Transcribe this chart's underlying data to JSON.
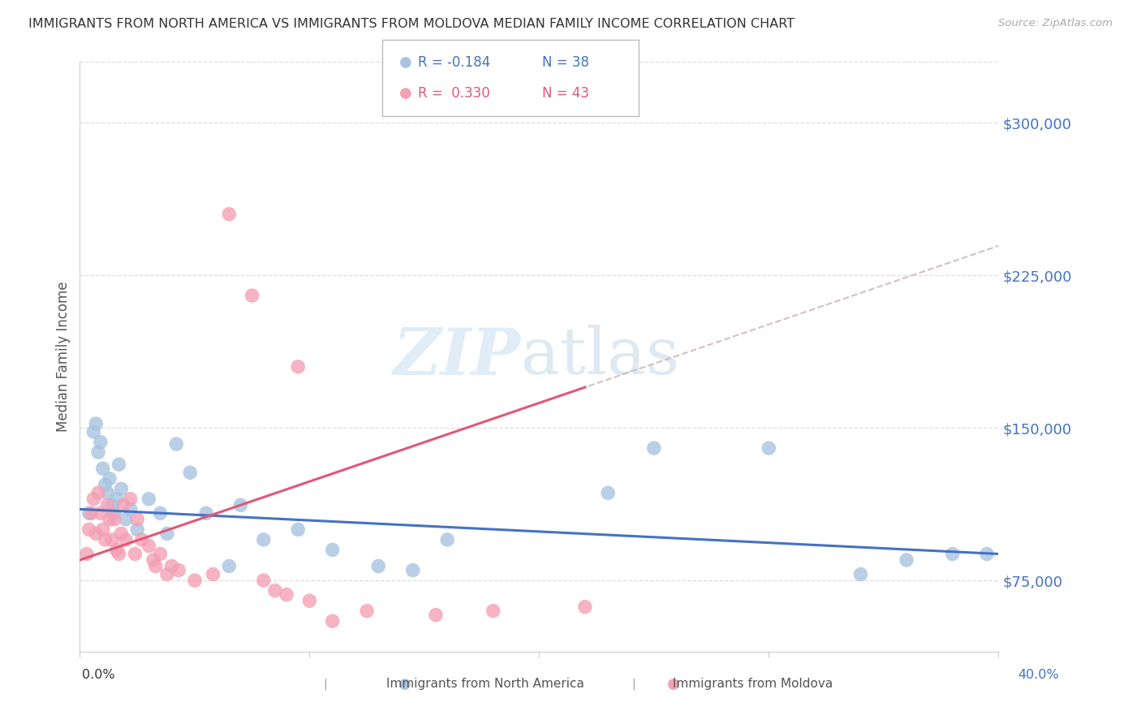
{
  "title": "IMMIGRANTS FROM NORTH AMERICA VS IMMIGRANTS FROM MOLDOVA MEDIAN FAMILY INCOME CORRELATION CHART",
  "source": "Source: ZipAtlas.com",
  "ylabel": "Median Family Income",
  "yticks": [
    75000,
    150000,
    225000,
    300000
  ],
  "ytick_labels": [
    "$75,000",
    "$150,000",
    "$225,000",
    "$300,000"
  ],
  "xlim": [
    0.0,
    0.4
  ],
  "ylim": [
    40000,
    330000
  ],
  "legend_label_blue": "Immigrants from North America",
  "legend_label_pink": "Immigrants from Moldova",
  "blue_color": "#a8c4e0",
  "blue_line_color": "#4472c4",
  "pink_color": "#f4a0b5",
  "pink_line_color": "#e05878",
  "title_color": "#333333",
  "axis_color": "#4472c4",
  "watermark": "ZIPatlas",
  "blue_scatter_x": [
    0.004,
    0.006,
    0.007,
    0.008,
    0.009,
    0.01,
    0.011,
    0.012,
    0.013,
    0.014,
    0.015,
    0.016,
    0.017,
    0.018,
    0.02,
    0.022,
    0.025,
    0.03,
    0.035,
    0.038,
    0.042,
    0.048,
    0.055,
    0.065,
    0.07,
    0.08,
    0.095,
    0.11,
    0.13,
    0.145,
    0.16,
    0.23,
    0.25,
    0.3,
    0.34,
    0.36,
    0.38,
    0.395
  ],
  "blue_scatter_y": [
    108000,
    148000,
    152000,
    138000,
    143000,
    130000,
    122000,
    118000,
    125000,
    112000,
    108000,
    115000,
    132000,
    120000,
    105000,
    110000,
    100000,
    115000,
    108000,
    98000,
    142000,
    128000,
    108000,
    82000,
    112000,
    95000,
    100000,
    90000,
    82000,
    80000,
    95000,
    118000,
    140000,
    140000,
    78000,
    85000,
    88000,
    88000
  ],
  "pink_scatter_x": [
    0.003,
    0.004,
    0.005,
    0.006,
    0.007,
    0.008,
    0.009,
    0.01,
    0.011,
    0.012,
    0.013,
    0.014,
    0.015,
    0.016,
    0.017,
    0.018,
    0.019,
    0.02,
    0.022,
    0.024,
    0.025,
    0.027,
    0.03,
    0.032,
    0.033,
    0.035,
    0.038,
    0.04,
    0.043,
    0.05,
    0.058,
    0.065,
    0.075,
    0.08,
    0.085,
    0.09,
    0.095,
    0.1,
    0.11,
    0.125,
    0.155,
    0.18,
    0.22
  ],
  "pink_scatter_y": [
    88000,
    100000,
    108000,
    115000,
    98000,
    118000,
    108000,
    100000,
    95000,
    112000,
    105000,
    95000,
    105000,
    90000,
    88000,
    98000,
    112000,
    95000,
    115000,
    88000,
    105000,
    95000,
    92000,
    85000,
    82000,
    88000,
    78000,
    82000,
    80000,
    75000,
    78000,
    255000,
    215000,
    75000,
    70000,
    68000,
    180000,
    65000,
    55000,
    60000,
    58000,
    60000,
    62000
  ]
}
